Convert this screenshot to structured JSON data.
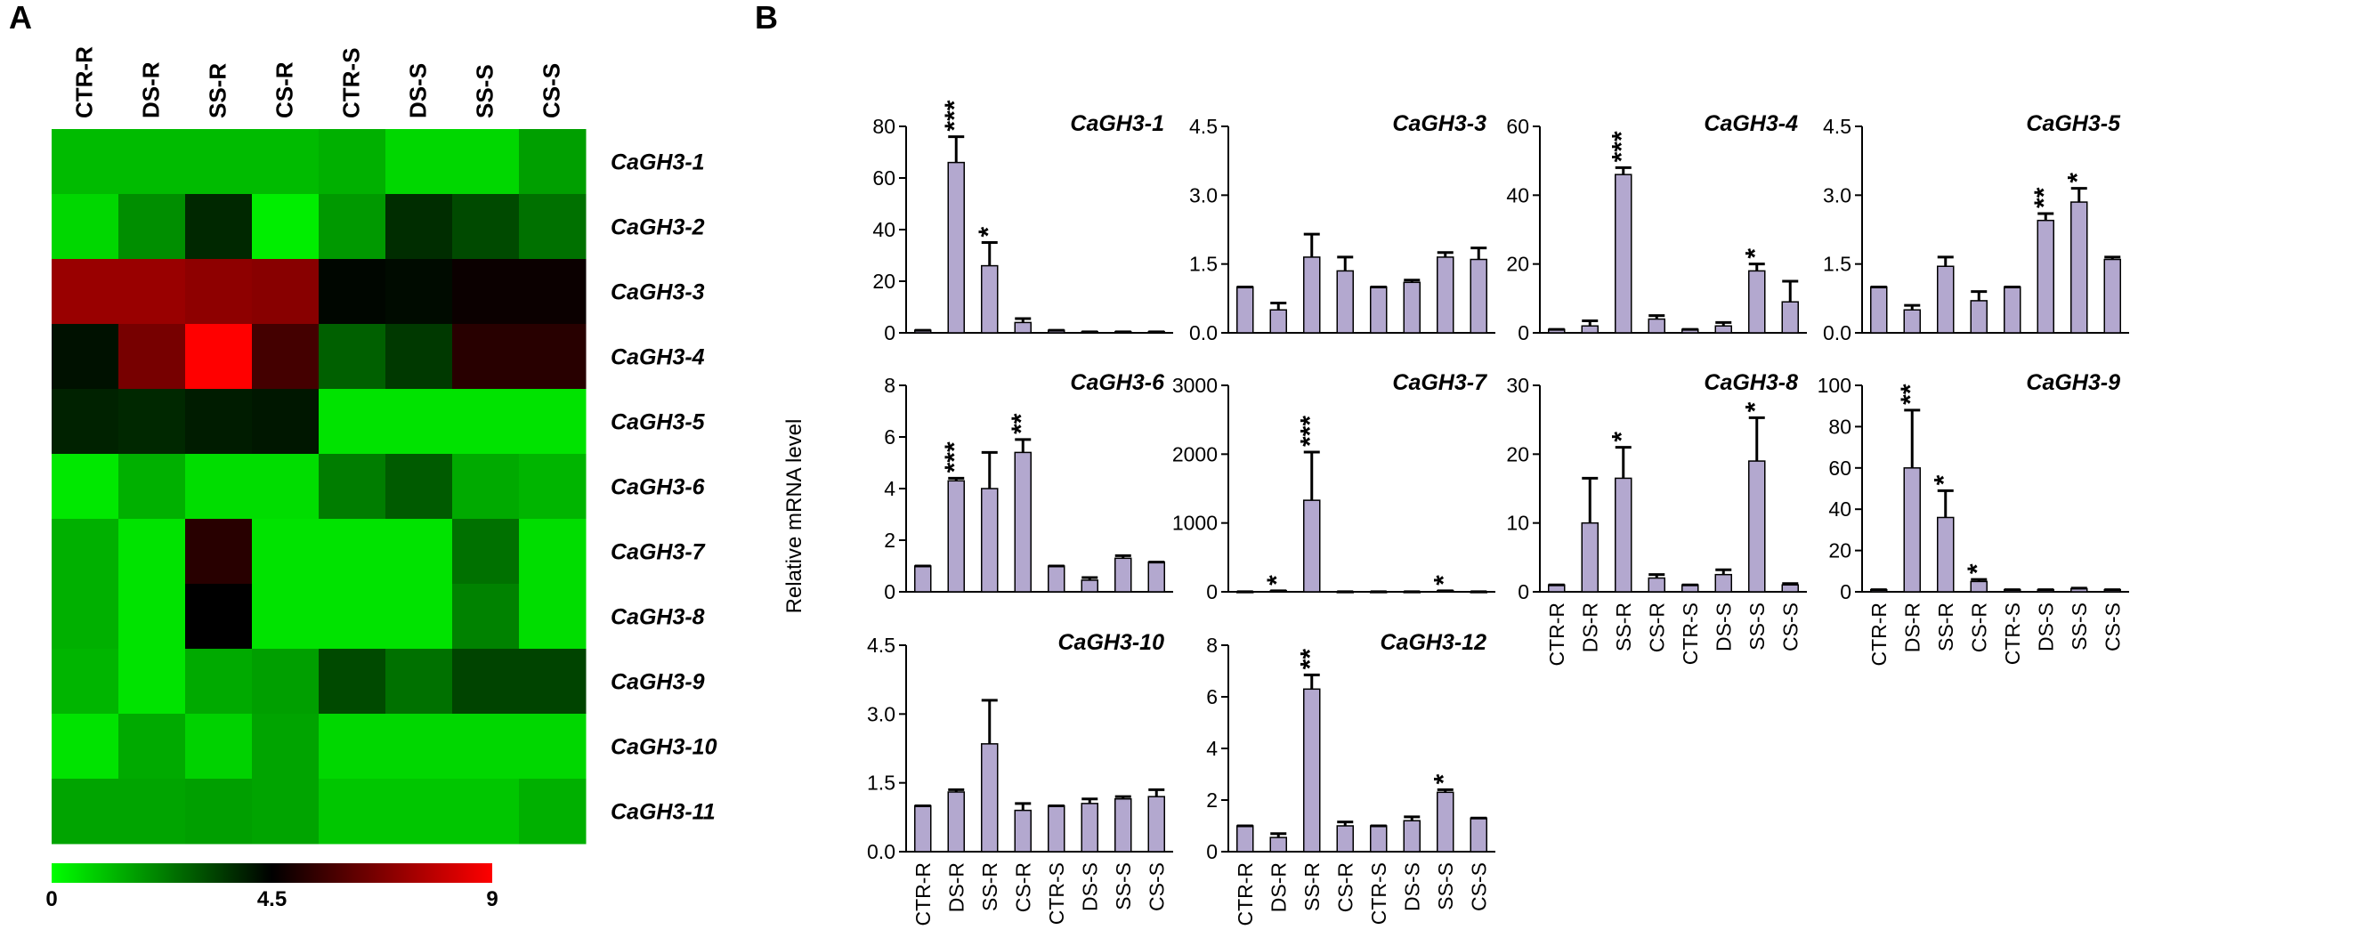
{
  "panel_labels": {
    "a": "A",
    "b": "B"
  },
  "y_axis_label": "Relative mRNA level",
  "chart_data": [
    {
      "type": "heatmap",
      "panel": "A",
      "columns": [
        "CTR-R",
        "DS-R",
        "SS-R",
        "CS-R",
        "CTR-S",
        "DS-S",
        "SS-S",
        "CS-S"
      ],
      "rows": [
        "CaGH3-1",
        "CaGH3-2",
        "CaGH3-3",
        "CaGH3-4",
        "CaGH3-5",
        "CaGH3-6",
        "CaGH3-7",
        "CaGH3-8",
        "CaGH3-9",
        "CaGH3-10",
        "CaGH3-11"
      ],
      "values": [
        [
          1.2,
          1.2,
          1.2,
          1.2,
          1.4,
          0.7,
          0.7,
          1.7
        ],
        [
          0.7,
          2.0,
          3.8,
          0.3,
          1.8,
          3.7,
          3.2,
          2.5
        ],
        [
          7.2,
          7.2,
          7.0,
          6.9,
          4.4,
          4.3,
          4.7,
          4.7
        ],
        [
          4.2,
          6.6,
          9.0,
          5.7,
          2.8,
          3.5,
          5.2,
          5.2
        ],
        [
          3.9,
          3.8,
          4.0,
          4.1,
          0.5,
          0.5,
          0.5,
          0.5
        ],
        [
          0.4,
          1.4,
          0.6,
          0.6,
          2.3,
          2.9,
          1.5,
          1.3
        ],
        [
          1.4,
          0.5,
          5.2,
          0.5,
          0.5,
          0.5,
          2.5,
          0.6
        ],
        [
          1.4,
          0.5,
          4.5,
          0.5,
          0.5,
          0.5,
          2.2,
          0.6
        ],
        [
          1.3,
          0.5,
          1.5,
          1.7,
          3.2,
          2.5,
          3.3,
          3.3
        ],
        [
          0.5,
          1.5,
          0.8,
          1.6,
          0.7,
          0.7,
          0.7,
          0.7
        ],
        [
          1.6,
          1.6,
          1.7,
          1.6,
          1.0,
          1.0,
          1.0,
          1.4
        ]
      ],
      "scale": {
        "min": 0,
        "mid": 4.5,
        "max": 9,
        "tick_labels": [
          "0",
          "4.5",
          "9"
        ],
        "colors": [
          "#00ff00",
          "#000000",
          "#ff0000"
        ]
      }
    },
    {
      "type": "bar",
      "panel": "B",
      "title": "CaGH3-1",
      "categories": [
        "CTR-R",
        "DS-R",
        "SS-R",
        "CS-R",
        "CTR-S",
        "DS-S",
        "SS-S",
        "CS-S"
      ],
      "values": [
        1,
        66,
        26,
        4,
        1,
        0.4,
        0.4,
        0.4
      ],
      "errors": [
        0,
        10,
        9,
        1.5,
        0,
        0,
        0,
        0
      ],
      "significance": [
        "",
        "***",
        "*",
        "",
        "",
        "",
        "",
        ""
      ],
      "ylim": [
        0,
        80
      ],
      "yticks": [
        "0",
        "20",
        "40",
        "60",
        "80"
      ],
      "show_xlabels": false
    },
    {
      "type": "bar",
      "panel": "B",
      "title": "CaGH3-3",
      "categories": [
        "CTR-R",
        "DS-R",
        "SS-R",
        "CS-R",
        "CTR-S",
        "DS-S",
        "SS-S",
        "CS-S"
      ],
      "values": [
        1,
        0.5,
        1.65,
        1.35,
        1,
        1.1,
        1.65,
        1.6
      ],
      "errors": [
        0,
        0.15,
        0.5,
        0.3,
        0,
        0.05,
        0.1,
        0.25
      ],
      "significance": [
        "",
        "",
        "",
        "",
        "",
        "",
        "",
        ""
      ],
      "ylim": [
        0,
        4.5
      ],
      "yticks": [
        "0.0",
        "1.5",
        "3.0",
        "4.5"
      ],
      "show_xlabels": false
    },
    {
      "type": "bar",
      "panel": "B",
      "title": "CaGH3-4",
      "categories": [
        "CTR-R",
        "DS-R",
        "SS-R",
        "CS-R",
        "CTR-S",
        "DS-S",
        "SS-S",
        "CS-S"
      ],
      "values": [
        1,
        2,
        46,
        4,
        1,
        2,
        18,
        9
      ],
      "errors": [
        0,
        1.5,
        2,
        1,
        0,
        1,
        2,
        6
      ],
      "significance": [
        "",
        "",
        "***",
        "",
        "",
        "",
        "*",
        ""
      ],
      "ylim": [
        0,
        60
      ],
      "yticks": [
        "0",
        "20",
        "40",
        "60"
      ],
      "show_xlabels": false
    },
    {
      "type": "bar",
      "panel": "B",
      "title": "CaGH3-5",
      "categories": [
        "CTR-R",
        "DS-R",
        "SS-R",
        "CS-R",
        "CTR-S",
        "DS-S",
        "SS-S",
        "CS-S"
      ],
      "values": [
        1,
        0.5,
        1.45,
        0.7,
        1,
        2.45,
        2.85,
        1.6
      ],
      "errors": [
        0,
        0.1,
        0.2,
        0.2,
        0,
        0.15,
        0.3,
        0.05
      ],
      "significance": [
        "",
        "",
        "",
        "",
        "",
        "**",
        "*",
        ""
      ],
      "ylim": [
        0,
        4.5
      ],
      "yticks": [
        "0.0",
        "1.5",
        "3.0",
        "4.5"
      ],
      "show_xlabels": false
    },
    {
      "type": "bar",
      "panel": "B",
      "title": "CaGH3-6",
      "categories": [
        "CTR-R",
        "DS-R",
        "SS-R",
        "CS-R",
        "CTR-S",
        "DS-S",
        "SS-S",
        "CS-S"
      ],
      "values": [
        1,
        4.3,
        4,
        5.4,
        1,
        0.45,
        1.3,
        1.15
      ],
      "errors": [
        0,
        0.1,
        1.4,
        0.5,
        0,
        0.1,
        0.1,
        0
      ],
      "significance": [
        "",
        "***",
        "",
        "**",
        "",
        "",
        "",
        ""
      ],
      "ylim": [
        0,
        8
      ],
      "yticks": [
        "0",
        "2",
        "4",
        "6",
        "8"
      ],
      "show_xlabels": false
    },
    {
      "type": "bar",
      "panel": "B",
      "title": "CaGH3-7",
      "categories": [
        "CTR-R",
        "DS-R",
        "SS-R",
        "CS-R",
        "CTR-S",
        "DS-S",
        "SS-S",
        "CS-S"
      ],
      "values": [
        1,
        15,
        1330,
        1,
        1,
        1,
        15,
        1
      ],
      "errors": [
        0,
        0,
        700,
        0,
        0,
        0,
        0,
        0
      ],
      "significance": [
        "",
        "*",
        "***",
        "",
        "",
        "",
        "*",
        ""
      ],
      "ylim": [
        0,
        3000
      ],
      "yticks": [
        "0",
        "1000",
        "2000",
        "3000"
      ],
      "show_xlabels": false
    },
    {
      "type": "bar",
      "panel": "B",
      "title": "CaGH3-8",
      "categories": [
        "CTR-R",
        "DS-R",
        "SS-R",
        "CS-R",
        "CTR-S",
        "DS-S",
        "SS-S",
        "CS-S"
      ],
      "values": [
        1,
        10,
        16.5,
        2,
        1,
        2.5,
        19,
        1
      ],
      "errors": [
        0,
        6.5,
        4.5,
        0.5,
        0,
        0.7,
        6.3,
        0.2
      ],
      "significance": [
        "",
        "",
        "*",
        "",
        "",
        "",
        "*",
        ""
      ],
      "ylim": [
        0,
        30
      ],
      "yticks": [
        "0",
        "10",
        "20",
        "30"
      ],
      "show_xlabels": true
    },
    {
      "type": "bar",
      "panel": "B",
      "title": "CaGH3-9",
      "categories": [
        "CTR-R",
        "DS-R",
        "SS-R",
        "CS-R",
        "CTR-S",
        "DS-S",
        "SS-S",
        "CS-S"
      ],
      "values": [
        1,
        60,
        36,
        5,
        1,
        1,
        1.5,
        1
      ],
      "errors": [
        0,
        28,
        13,
        1,
        0,
        0,
        0.3,
        0
      ],
      "significance": [
        "",
        "**",
        "*",
        "*",
        "",
        "",
        "",
        ""
      ],
      "ylim": [
        0,
        100
      ],
      "yticks": [
        "0",
        "20",
        "40",
        "60",
        "80",
        "100"
      ],
      "show_xlabels": true
    },
    {
      "type": "bar",
      "panel": "B",
      "title": "CaGH3-10",
      "categories": [
        "CTR-R",
        "DS-R",
        "SS-R",
        "CS-R",
        "CTR-S",
        "DS-S",
        "SS-S",
        "CS-S"
      ],
      "values": [
        1,
        1.3,
        2.35,
        0.9,
        1,
        1.05,
        1.15,
        1.2
      ],
      "errors": [
        0,
        0.05,
        0.95,
        0.15,
        0,
        0.1,
        0.05,
        0.15
      ],
      "significance": [
        "",
        "",
        "",
        "",
        "",
        "",
        "",
        ""
      ],
      "ylim": [
        0,
        4.5
      ],
      "yticks": [
        "0.0",
        "1.5",
        "3.0",
        "4.5"
      ],
      "show_xlabels": true
    },
    {
      "type": "bar",
      "panel": "B",
      "title": "CaGH3-12",
      "categories": [
        "CTR-R",
        "DS-R",
        "SS-R",
        "CS-R",
        "CTR-S",
        "DS-S",
        "SS-S",
        "CS-S"
      ],
      "values": [
        1,
        0.55,
        6.3,
        1,
        1,
        1.2,
        2.3,
        1.3
      ],
      "errors": [
        0,
        0.15,
        0.55,
        0.15,
        0,
        0.15,
        0.1,
        0
      ],
      "significance": [
        "",
        "",
        "**",
        "",
        "",
        "",
        "*",
        ""
      ],
      "ylim": [
        0,
        8
      ],
      "yticks": [
        "0",
        "2",
        "4",
        "6",
        "8"
      ],
      "show_xlabels": true
    }
  ]
}
